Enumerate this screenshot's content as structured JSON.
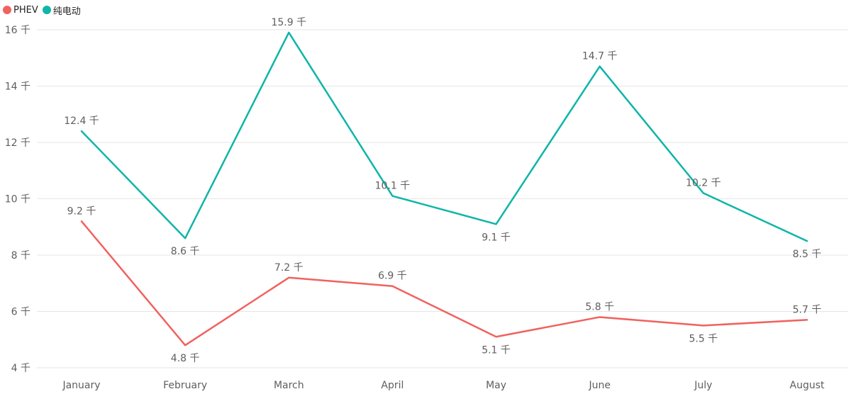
{
  "legend": [
    {
      "name": "PHEV",
      "color": "#F0625F"
    },
    {
      "name": "纯电动",
      "color": "#0FB5A8"
    }
  ],
  "chart_data": {
    "type": "line",
    "categories": [
      "January",
      "February",
      "March",
      "April",
      "May",
      "June",
      "July",
      "August"
    ],
    "ylim": [
      4,
      16
    ],
    "yticks": [
      4,
      6,
      8,
      10,
      12,
      14,
      16
    ],
    "ytick_labels": [
      "4 千",
      "6 千",
      "8 千",
      "10 千",
      "12 千",
      "14 千",
      "16 千"
    ],
    "grid": true,
    "legend_position": "top-left",
    "series": [
      {
        "name": "PHEV",
        "color": "#F0625F",
        "values": [
          9.2,
          4.8,
          7.2,
          6.9,
          5.1,
          5.8,
          5.5,
          5.7
        ],
        "labels": [
          "9.2 千",
          "4.8 千",
          "7.2 千",
          "6.9 千",
          "5.1 千",
          "5.8 千",
          "5.5 千",
          "5.7 千"
        ]
      },
      {
        "name": "纯电动",
        "color": "#0FB5A8",
        "values": [
          12.4,
          8.6,
          15.9,
          10.1,
          9.1,
          14.7,
          10.2,
          8.5
        ],
        "labels": [
          "12.4 千",
          "8.6 千",
          "15.9 千",
          "10.1 千",
          "9.1 千",
          "14.7 千",
          "10.2 千",
          "8.5 千"
        ]
      }
    ]
  }
}
